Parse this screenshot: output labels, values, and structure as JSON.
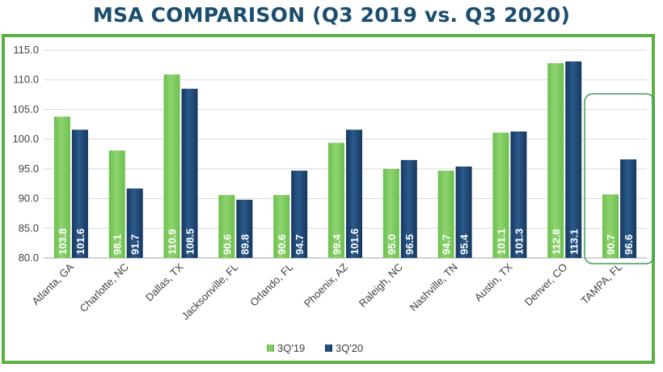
{
  "chart_data": {
    "type": "bar",
    "title": "MSA COMPARISON (Q3 2019 vs. Q3 2020)",
    "categories": [
      "Atlanta, GA",
      "Charlotte, NC",
      "Dallas, TX",
      "Jacksonville, FL",
      "Orlando, FL",
      "Phoenix, AZ",
      "Raleigh, NC",
      "Nashville, TN",
      "Austin, TX",
      "Denver, CO",
      "TAMPA, FL"
    ],
    "series": [
      {
        "name": "3Q'19",
        "values": [
          103.8,
          98.1,
          110.9,
          90.6,
          90.6,
          99.4,
          95.0,
          94.7,
          101.1,
          112.8,
          90.7
        ],
        "labels": [
          "103.8",
          "98.1",
          "110.9",
          "90.6",
          "90.6",
          "99.4",
          "95.0",
          "94.7",
          "101.1",
          "112.8",
          "90.7"
        ],
        "color": "#6cbf4f"
      },
      {
        "name": "3Q'20",
        "values": [
          101.6,
          91.7,
          108.5,
          89.8,
          94.7,
          101.6,
          96.5,
          95.4,
          101.3,
          113.1,
          96.6
        ],
        "labels": [
          "101.6",
          "91.7",
          "108.5",
          "89.8",
          "94.7",
          "101.6",
          "96.5",
          "95.4",
          "101.3",
          "113.1",
          "96.6"
        ],
        "color": "#17375e"
      }
    ],
    "ylim": [
      80,
      115
    ],
    "yticks": [
      "80.0",
      "85.0",
      "90.0",
      "95.0",
      "100.0",
      "105.0",
      "110.0",
      "115.0"
    ],
    "grid": true,
    "legend_position": "bottom",
    "highlighted_category": "TAMPA, FL",
    "highlight_color": "#3a9e5c"
  }
}
